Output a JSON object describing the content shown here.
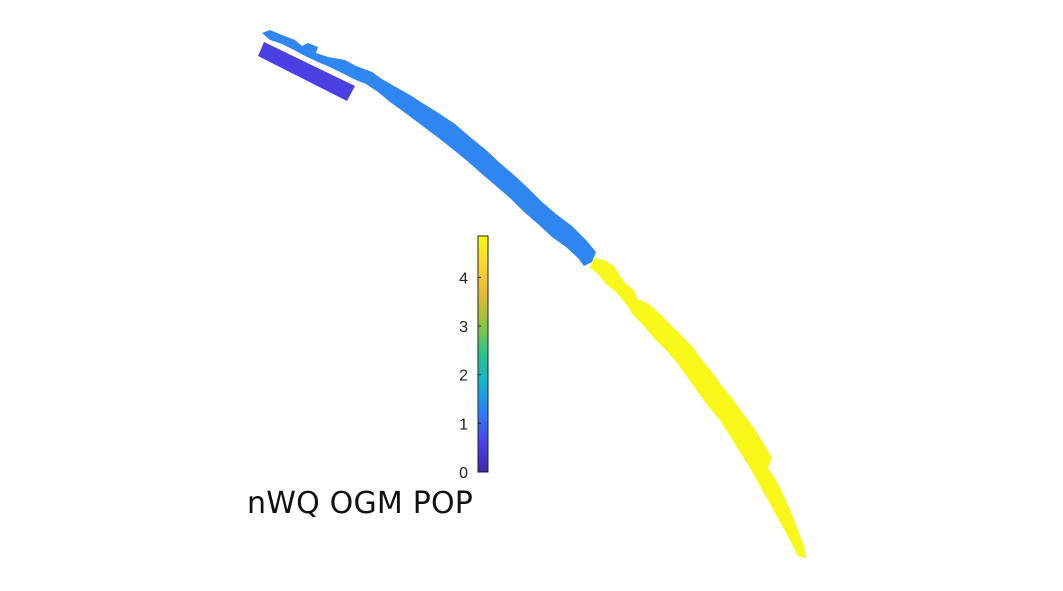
{
  "title": "nWQ OGM POP",
  "chart_data": {
    "type": "heatmap",
    "title": "nWQ OGM POP",
    "colorbar": {
      "min": 0,
      "max": 4.85,
      "ticks": [
        0,
        1,
        2,
        3,
        4
      ],
      "tick_labels": [
        "0",
        "1",
        "2",
        "3",
        "4"
      ],
      "colormap": "parula",
      "stops": [
        "#3e26a8",
        "#4744e8",
        "#2c7ef7",
        "#13b3d5",
        "#2ac38c",
        "#8cc63e",
        "#e3b835",
        "#fbd72d",
        "#f9fb0e"
      ]
    },
    "regions": [
      {
        "name": "",
        "value": 0.45,
        "color": "#4a3fe0"
      },
      {
        "name": "",
        "value": 1.25,
        "color": "#2f86f0"
      },
      {
        "name": "",
        "value": 4.85,
        "color": "#f7f71a"
      }
    ]
  }
}
